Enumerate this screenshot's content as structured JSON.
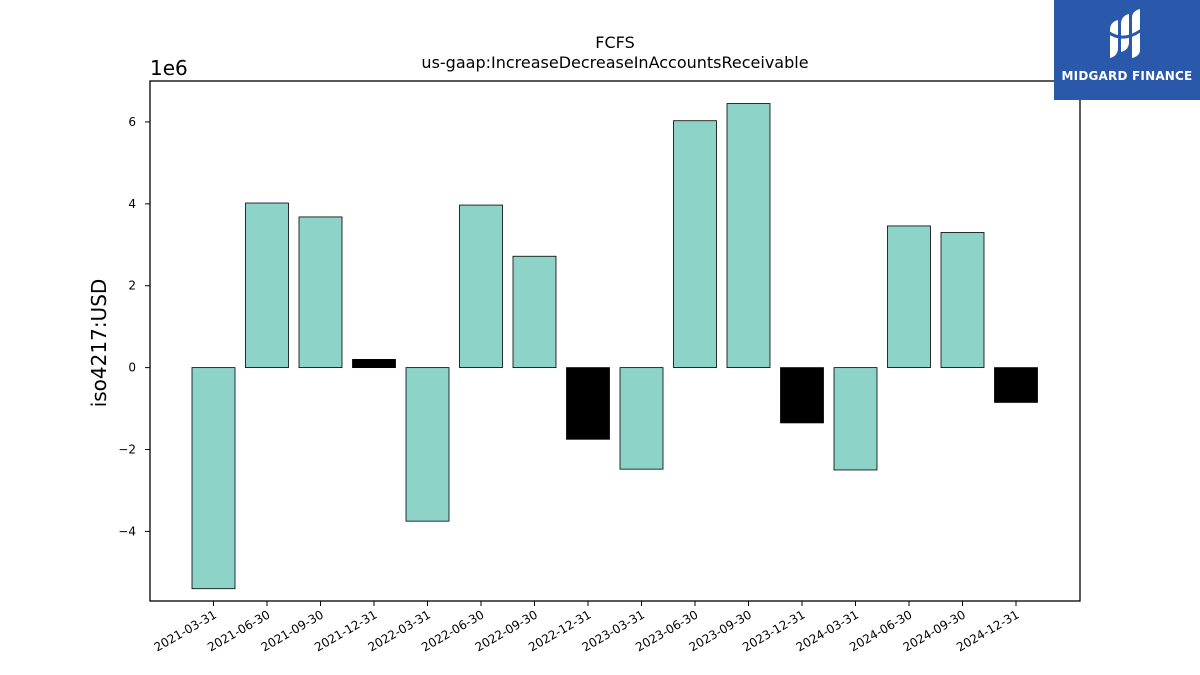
{
  "chart_data": {
    "type": "bar",
    "title": "FCFS",
    "subtitle": "us-gaap:IncreaseDecreaseInAccountsReceivable",
    "ylabel": "iso4217:USD",
    "xlabel": "",
    "scale_label": "1e6",
    "ylim": [
      -5.7,
      7.0
    ],
    "yticks": [
      -4,
      -2,
      0,
      2,
      4,
      6
    ],
    "ytick_labels": [
      "−4",
      "−2",
      "0",
      "2",
      "4",
      "6"
    ],
    "grid": false,
    "categories": [
      "2021-03-31",
      "2021-06-30",
      "2021-09-30",
      "2021-12-31",
      "2022-03-31",
      "2022-06-30",
      "2022-09-30",
      "2022-12-31",
      "2023-03-31",
      "2023-06-30",
      "2023-09-30",
      "2023-12-31",
      "2024-03-31",
      "2024-06-30",
      "2024-09-30",
      "2024-12-31"
    ],
    "values": [
      -5.4,
      4.02,
      3.68,
      0.2,
      -3.75,
      3.97,
      2.72,
      -1.75,
      -2.48,
      6.03,
      6.45,
      -1.35,
      -2.5,
      3.46,
      3.3,
      -0.85
    ],
    "colors": [
      "#8dd3c7",
      "#8dd3c7",
      "#8dd3c7",
      "#000000",
      "#8dd3c7",
      "#8dd3c7",
      "#8dd3c7",
      "#000000",
      "#8dd3c7",
      "#8dd3c7",
      "#8dd3c7",
      "#000000",
      "#8dd3c7",
      "#8dd3c7",
      "#8dd3c7",
      "#000000"
    ]
  },
  "logo": {
    "text": "MIDGARD FINANCE",
    "background": "#2a58ab",
    "icon": "midgard-logo-icon"
  }
}
